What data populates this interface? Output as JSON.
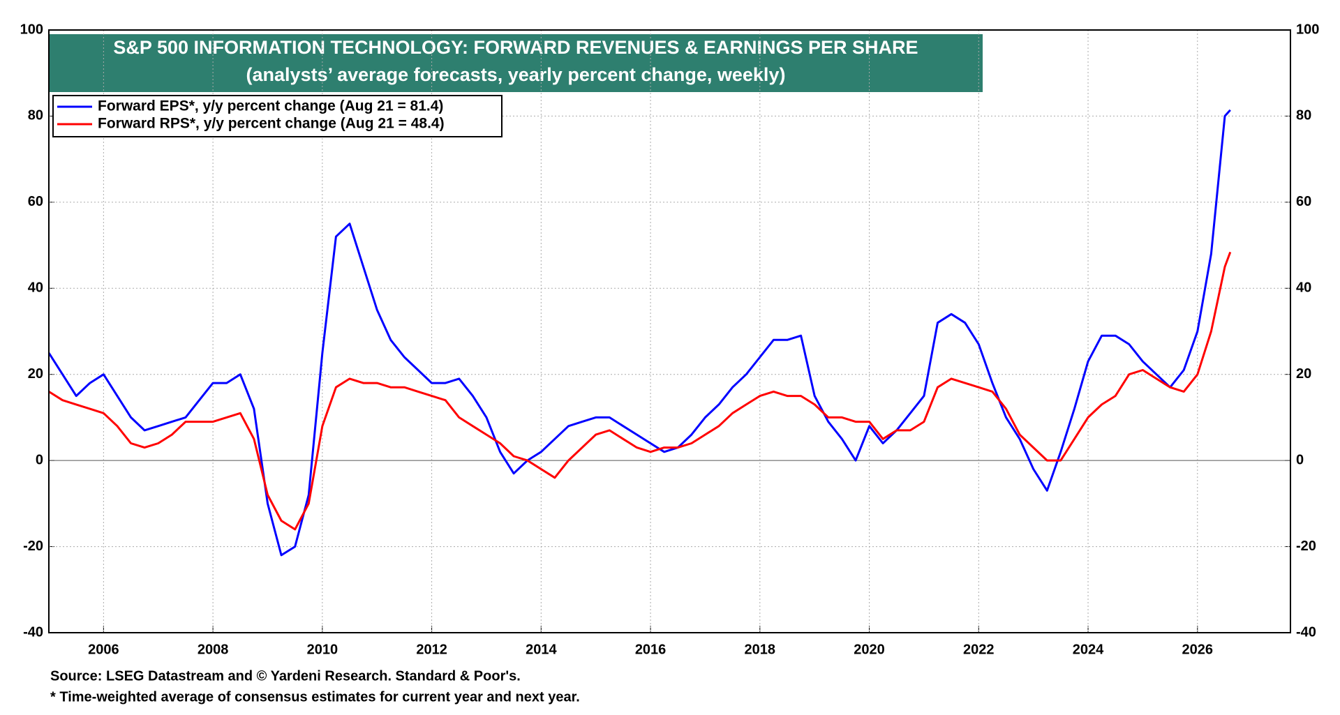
{
  "chart_data": {
    "type": "line",
    "title": "S&P 500 INFORMATION TECHNOLOGY: FORWARD REVENUES & EARNINGS PER SHARE",
    "subtitle": "(analysts’ average forecasts, yearly percent change, weekly)",
    "source": "Source: LSEG Datastream and © Yardeni Research. Standard & Poor's.",
    "footnote": "* Time-weighted average of consensus estimates for current year and next year.",
    "x": [
      2005.0,
      2005.25,
      2005.5,
      2005.75,
      2006.0,
      2006.25,
      2006.5,
      2006.75,
      2007.0,
      2007.25,
      2007.5,
      2007.75,
      2008.0,
      2008.25,
      2008.5,
      2008.75,
      2009.0,
      2009.25,
      2009.5,
      2009.75,
      2010.0,
      2010.25,
      2010.5,
      2010.75,
      2011.0,
      2011.25,
      2011.5,
      2011.75,
      2012.0,
      2012.25,
      2012.5,
      2012.75,
      2013.0,
      2013.25,
      2013.5,
      2013.75,
      2014.0,
      2014.25,
      2014.5,
      2014.75,
      2015.0,
      2015.25,
      2015.5,
      2015.75,
      2016.0,
      2016.25,
      2016.5,
      2016.75,
      2017.0,
      2017.25,
      2017.5,
      2017.75,
      2018.0,
      2018.25,
      2018.5,
      2018.75,
      2019.0,
      2019.25,
      2019.5,
      2019.75,
      2020.0,
      2020.25,
      2020.5,
      2020.75,
      2021.0,
      2021.25,
      2021.5,
      2021.75,
      2022.0,
      2022.25,
      2022.5,
      2022.75,
      2023.0,
      2023.25,
      2023.5,
      2023.75,
      2024.0,
      2024.25,
      2024.5,
      2024.75,
      2025.0,
      2025.25,
      2025.5,
      2025.75,
      2026.0,
      2026.25,
      2026.5,
      2026.6
    ],
    "series": [
      {
        "name": "Forward EPS*, y/y percent change (Aug 21 = 81.4)",
        "color": "#0000ff",
        "values": [
          25,
          20,
          15,
          18,
          20,
          15,
          10,
          7,
          8,
          9,
          10,
          14,
          18,
          18,
          20,
          12,
          -10,
          -22,
          -20,
          -8,
          25,
          52,
          55,
          45,
          35,
          28,
          24,
          21,
          18,
          18,
          19,
          15,
          10,
          2,
          -3,
          0,
          2,
          5,
          8,
          9,
          10,
          10,
          8,
          6,
          4,
          2,
          3,
          6,
          10,
          13,
          17,
          20,
          24,
          28,
          28,
          29,
          15,
          9,
          5,
          0,
          8,
          4,
          7,
          11,
          15,
          32,
          34,
          32,
          27,
          18,
          10,
          5,
          -2,
          -7,
          2,
          12,
          23,
          29,
          29,
          27,
          23,
          20,
          17,
          21,
          30,
          48,
          80,
          81.4
        ]
      },
      {
        "name": "Forward RPS*, y/y percent change (Aug 21 = 48.4)",
        "color": "#ff0000",
        "values": [
          16,
          14,
          13,
          12,
          11,
          8,
          4,
          3,
          4,
          6,
          9,
          9,
          9,
          10,
          11,
          5,
          -8,
          -14,
          -16,
          -10,
          8,
          17,
          19,
          18,
          18,
          17,
          17,
          16,
          15,
          14,
          10,
          8,
          6,
          4,
          1,
          0,
          -2,
          -4,
          0,
          3,
          6,
          7,
          5,
          3,
          2,
          3,
          3,
          4,
          6,
          8,
          11,
          13,
          15,
          16,
          15,
          15,
          13,
          10,
          10,
          9,
          9,
          5,
          7,
          7,
          9,
          17,
          19,
          18,
          17,
          16,
          12,
          6,
          3,
          0,
          0,
          5,
          10,
          13,
          15,
          20,
          21,
          19,
          17,
          16,
          20,
          30,
          45,
          48.4
        ]
      }
    ],
    "xlim": [
      2005,
      2027.7
    ],
    "xticks": [
      2006,
      2008,
      2010,
      2012,
      2014,
      2016,
      2018,
      2020,
      2022,
      2024,
      2026
    ],
    "ylim": [
      -40,
      100
    ],
    "yticks": [
      -40,
      -20,
      0,
      20,
      40,
      60,
      80,
      100
    ],
    "grid": true
  }
}
